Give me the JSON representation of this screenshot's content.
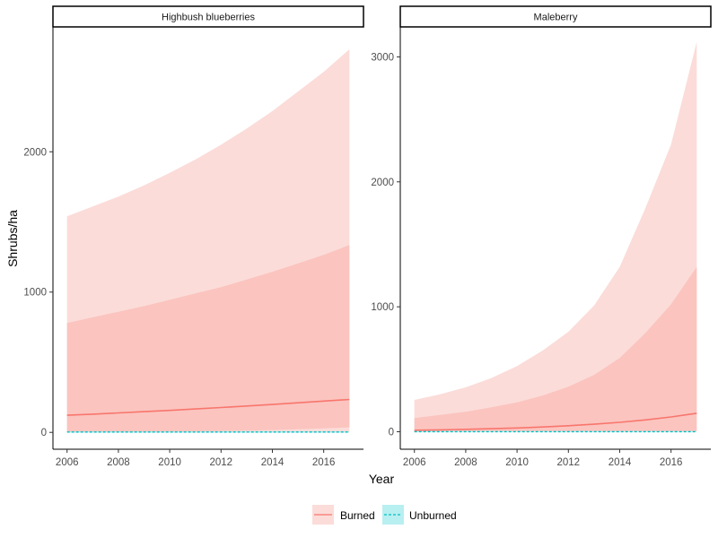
{
  "chart_data": {
    "type": "area",
    "xlabel": "Year",
    "ylabel": "Shrubs/ha",
    "xlim": [
      2005.45,
      2017.55
    ],
    "x_ticks": [
      2006,
      2008,
      2010,
      2012,
      2014,
      2016
    ],
    "legend": {
      "placement": "bottom",
      "entries": [
        {
          "name": "Burned",
          "color": "#F8766D"
        },
        {
          "name": "Unburned",
          "color": "#00BFC4"
        }
      ]
    },
    "panels": [
      {
        "title": "Highbush blueberries",
        "ylim": [
          -120,
          2890
        ],
        "y_ticks": [
          0,
          1000,
          2000
        ],
        "x": [
          2006,
          2007,
          2008,
          2009,
          2010,
          2011,
          2012,
          2013,
          2014,
          2015,
          2016,
          2017
        ],
        "series": [
          {
            "name": "Burned",
            "line_style": "solid",
            "mean": [
              122,
              130,
              139,
              148,
              157,
              167,
              177,
              188,
              199,
              211,
              223,
              235
            ],
            "inner_band": {
              "lower": [
                3,
                3,
                4,
                5,
                6,
                8,
                10,
                13,
                17,
                22,
                28,
                36
              ],
              "upper": [
                780,
                820,
                860,
                900,
                945,
                990,
                1035,
                1090,
                1145,
                1205,
                1265,
                1335
              ]
            },
            "outer_band": {
              "lower": [
                0,
                0,
                0,
                0,
                0,
                0,
                0,
                0,
                0,
                0,
                0,
                0
              ],
              "upper": [
                1540,
                1610,
                1680,
                1760,
                1850,
                1945,
                2050,
                2165,
                2290,
                2430,
                2570,
                2730
              ]
            }
          },
          {
            "name": "Unburned",
            "line_style": "dashed",
            "mean": [
              3,
              3,
              3,
              3,
              3,
              3,
              3,
              3,
              3,
              3,
              3,
              3
            ],
            "inner_band": {
              "lower": [
                0,
                0,
                0,
                0,
                0,
                0,
                0,
                0,
                0,
                0,
                0,
                0
              ],
              "upper": [
                6,
                6,
                6,
                6,
                6,
                6,
                6,
                6,
                6,
                6,
                6,
                6
              ]
            }
          }
        ]
      },
      {
        "title": "Maleberry",
        "ylim": [
          -140,
          3240
        ],
        "y_ticks": [
          0,
          1000,
          2000,
          3000
        ],
        "x": [
          2006,
          2007,
          2008,
          2009,
          2010,
          2011,
          2012,
          2013,
          2014,
          2015,
          2016,
          2017
        ],
        "series": [
          {
            "name": "Burned",
            "line_style": "solid",
            "mean": [
              12,
              15,
              19,
              24,
              30,
              38,
              48,
              60,
              75,
              95,
              118,
              148
            ],
            "inner_band": {
              "lower": [
                0,
                0,
                0,
                0,
                0,
                0,
                0,
                0,
                0,
                0,
                0,
                0
              ],
              "upper": [
                110,
                135,
                160,
                195,
                235,
                290,
                360,
                455,
                590,
                790,
                1020,
                1320
              ]
            },
            "outer_band": {
              "lower": [
                0,
                0,
                0,
                0,
                0,
                0,
                0,
                0,
                0,
                0,
                0,
                0
              ],
              "upper": [
                255,
                300,
                355,
                430,
                525,
                650,
                800,
                1010,
                1320,
                1790,
                2300,
                3120
              ]
            }
          },
          {
            "name": "Unburned",
            "line_style": "dashed",
            "mean": [
              1,
              1,
              1,
              1,
              1,
              1,
              1,
              1,
              1,
              1,
              1,
              1
            ],
            "inner_band": {
              "lower": [
                0,
                0,
                0,
                0,
                0,
                0,
                0,
                0,
                0,
                0,
                0,
                0
              ],
              "upper": [
                4,
                4,
                4,
                4,
                4,
                4,
                4,
                4,
                4,
                4,
                4,
                4
              ]
            }
          }
        ]
      }
    ]
  },
  "colors": {
    "burned_outer_band": "#FBDCD9",
    "burned_inner_band": "#FBC4BF",
    "burned_line": "#F8766D",
    "unburned_band": "#B8EFF1",
    "unburned_line": "#00BFC4"
  }
}
